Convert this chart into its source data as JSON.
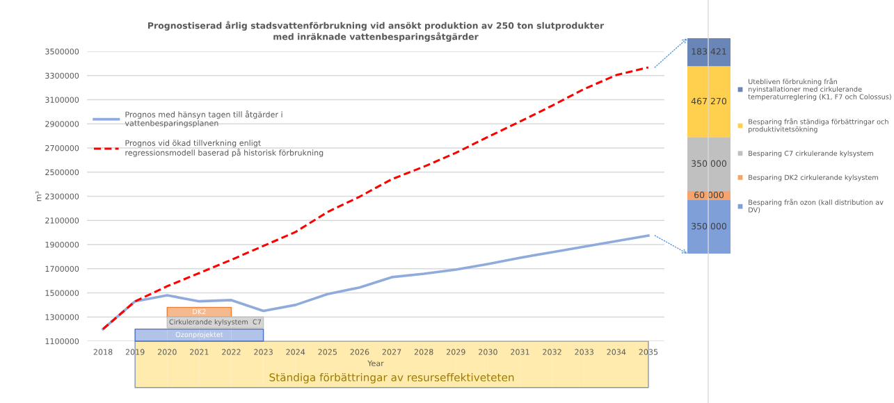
{
  "chart_data": [
    {
      "type": "line",
      "title": "Prognostiserad årlig stadsvattenförbrukning vid ansökt produktion av 250 ton slutprodukter med inräknade vattenbesparingsåtgärder",
      "xlabel": "Year",
      "ylabel": "m³",
      "categories": [
        "2018",
        "2019",
        "2020",
        "2021",
        "2022",
        "2023",
        "2024",
        "2025",
        "2026",
        "2027",
        "2028",
        "2029",
        "2030",
        "2031",
        "2032",
        "2033",
        "2034",
        "2035"
      ],
      "series": [
        {
          "name": "Prognos med hänsyn tagen till åtgärder i vattenbesparingsplanen",
          "color": "#8faadc",
          "line_style": "solid",
          "values": [
            1200000,
            1430000,
            1480000,
            1430000,
            1440000,
            1350000,
            1400000,
            1490000,
            1545000,
            1630000,
            1658000,
            1693000,
            1739000,
            1791000,
            1837000,
            1883000,
            1929000,
            1975000
          ]
        },
        {
          "name": "Prognos vid ökad tillverkning enligt regressionsmodell baserad på historisk förbrukning",
          "color": "#ff0000",
          "line_style": "dashed",
          "values": [
            1200000,
            1430000,
            1555000,
            1664000,
            1774000,
            1889000,
            2004000,
            2170000,
            2297000,
            2441000,
            2545000,
            2660000,
            2792000,
            2919000,
            3051000,
            3189000,
            3304000,
            3368000
          ]
        }
      ],
      "ylim": [
        1100000,
        3500000
      ],
      "yticks": [
        1100000,
        1300000,
        1500000,
        1700000,
        1900000,
        2100000,
        2300000,
        2500000,
        2700000,
        2900000,
        3100000,
        3300000,
        3500000
      ],
      "grid": "y",
      "legend": "top left",
      "annotations": [
        "DK2",
        "Cirkulerande kylsystem  C7",
        "Ozonprojektet",
        "Ständiga förbättringar av resurseffektiveteten"
      ]
    },
    {
      "type": "bar",
      "stacked": true,
      "categories": [
        null
      ],
      "tick_labels": false,
      "legend": "right",
      "series": [
        {
          "name": "Besparing från ozon (kall distribution av DV)",
          "color": "#7f9fd8",
          "values": [
            350000
          ],
          "value_labels": [
            "350 000"
          ]
        },
        {
          "name": "Besparing DK2 cirkulerande kylsystem",
          "color": "#f4a46c",
          "values": [
            60000
          ],
          "value_labels": [
            "60 000"
          ]
        },
        {
          "name": "Besparing C7 cirkulerande kylsystem",
          "color": "#c0c0c0",
          "values": [
            350000
          ],
          "value_labels": [
            "350 000"
          ]
        },
        {
          "name": "Besparing från ständiga förbättringar och produktivitetsökning",
          "color": "#ffd04d",
          "values": [
            467270
          ],
          "value_labels": [
            "467 270"
          ]
        },
        {
          "name": "Utebliven förbrukning från nyinstallationer med cirkulerande temperaturreglering (K1, F7 och Colossus)",
          "color": "#6a86b8",
          "values": [
            183421
          ],
          "value_labels": [
            "183 421"
          ]
        }
      ]
    }
  ]
}
